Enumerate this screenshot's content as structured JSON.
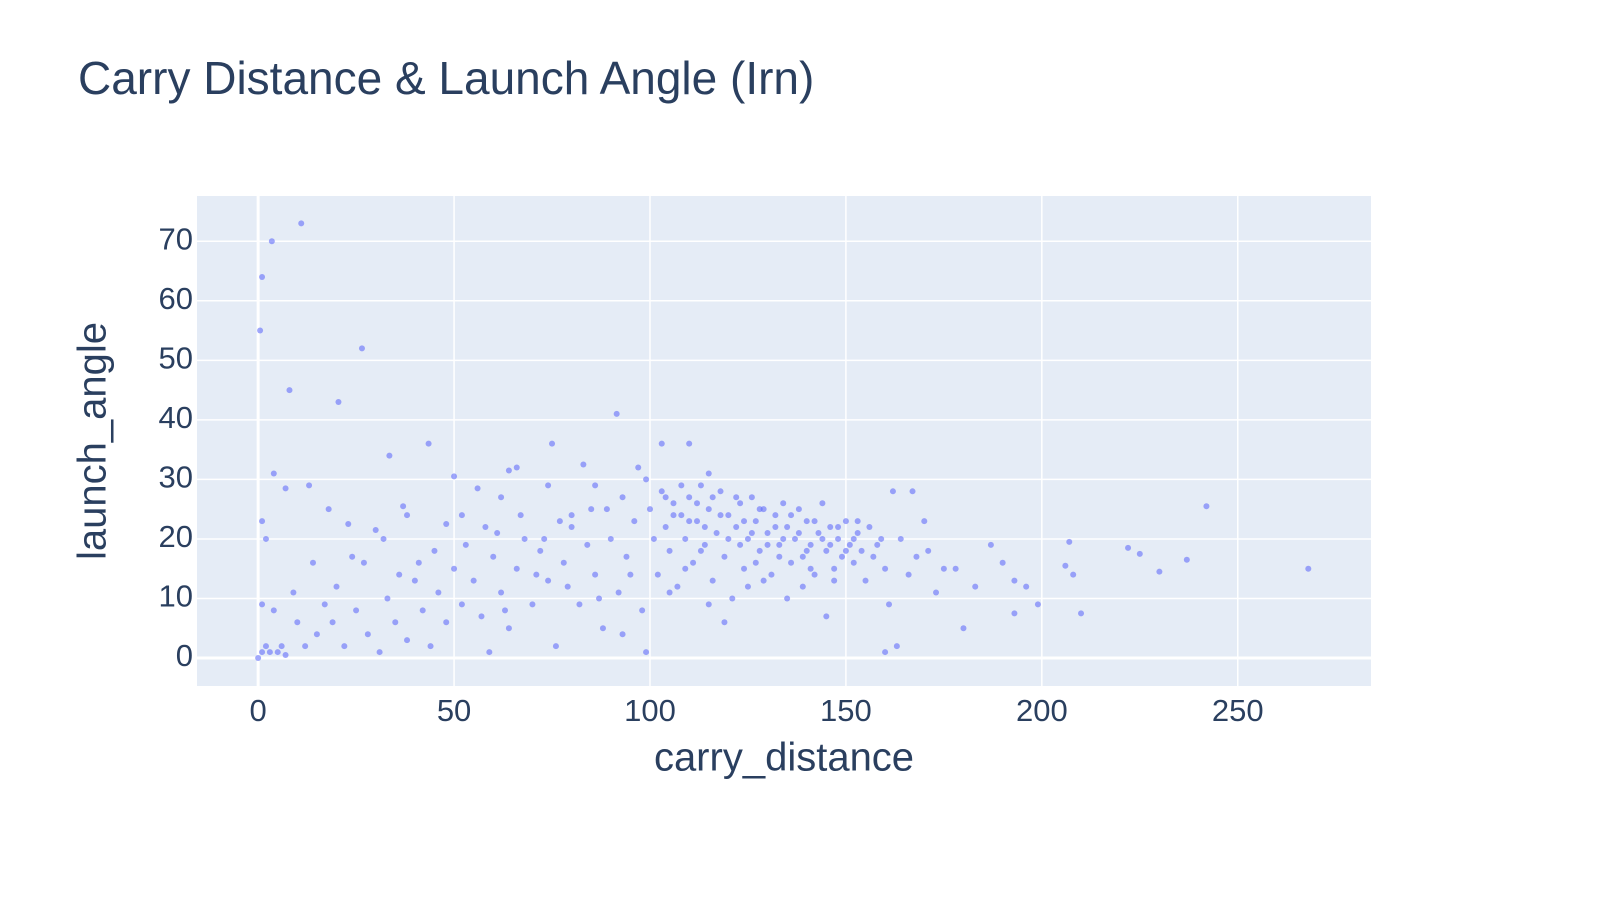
{
  "chart_data": {
    "type": "scatter",
    "title": "Carry Distance & Launch Angle (Irn)",
    "x_label": "carry_distance",
    "y_label": "launch_angle",
    "xlim": [
      -15.6,
      284
    ],
    "ylim": [
      -4.7,
      77.6
    ],
    "xticks": [
      0,
      50,
      100,
      150,
      200,
      250
    ],
    "yticks": [
      0,
      10,
      20,
      30,
      40,
      50,
      60,
      70
    ],
    "grid": true,
    "marker_color": "#636efa",
    "marker_opacity": 0.6,
    "series": [
      {
        "name": "launch_angle",
        "color": "#636efa",
        "x": [
          11,
          3.5,
          1,
          0.5,
          26.5,
          8,
          20.5,
          91.5,
          43.5,
          75,
          103,
          110,
          33.5,
          4,
          50,
          66,
          115,
          1,
          0,
          1,
          2,
          3,
          5,
          7,
          6,
          1,
          4,
          2,
          7,
          13,
          18,
          23,
          30,
          37,
          38,
          48,
          52,
          56,
          62,
          64,
          74,
          80,
          83,
          86,
          89,
          93,
          97,
          99,
          10,
          12,
          15,
          17,
          20,
          22,
          25,
          28,
          31,
          33,
          35,
          38,
          40,
          42,
          44,
          46,
          48,
          50,
          52,
          55,
          57,
          59,
          60,
          62,
          64,
          66,
          68,
          70,
          72,
          74,
          76,
          78,
          80,
          82,
          84,
          86,
          88,
          90,
          92,
          94,
          96,
          98,
          99,
          27,
          14,
          32,
          45,
          53,
          61,
          67,
          73,
          79,
          85,
          95,
          58,
          36,
          24,
          19,
          9,
          41,
          63,
          71,
          77,
          87,
          93,
          100,
          101,
          102,
          103,
          104,
          105,
          106,
          107,
          108,
          109,
          110,
          111,
          112,
          113,
          114,
          115,
          116,
          117,
          118,
          119,
          120,
          121,
          122,
          123,
          124,
          125,
          126,
          127,
          128,
          129,
          130,
          131,
          132,
          133,
          134,
          135,
          136,
          137,
          138,
          139,
          140,
          141,
          142,
          143,
          144,
          145,
          146,
          147,
          148,
          149,
          150,
          151,
          152,
          153,
          154,
          155,
          156,
          157,
          158,
          159,
          160,
          104,
          106,
          108,
          110,
          112,
          114,
          116,
          118,
          120,
          122,
          124,
          126,
          128,
          130,
          132,
          134,
          136,
          138,
          140,
          142,
          144,
          146,
          148,
          150,
          152,
          105,
          115,
          125,
          135,
          145,
          119,
          129,
          139,
          109,
          127,
          141,
          147,
          153,
          113,
          123,
          133,
          160,
          162,
          164,
          166,
          168,
          170,
          173,
          175,
          178,
          180,
          183,
          187,
          190,
          193,
          193,
          196,
          199,
          206,
          207,
          208,
          210,
          222,
          225,
          230,
          237,
          242,
          268,
          161,
          163,
          167,
          171
        ],
        "values": [
          73,
          70,
          64,
          55,
          52,
          45,
          43,
          41,
          36,
          36,
          36,
          36,
          34,
          31,
          30.5,
          32,
          31,
          23,
          0,
          1,
          2,
          1,
          1,
          0.5,
          2,
          9,
          8,
          20,
          28.5,
          29,
          25,
          22.5,
          21.5,
          25.5,
          24,
          22.5,
          24,
          28.5,
          27,
          31.5,
          29,
          24,
          32.5,
          29,
          25,
          27,
          32,
          30,
          6,
          2,
          4,
          9,
          12,
          2,
          8,
          4,
          1,
          10,
          6,
          3,
          13,
          8,
          2,
          11,
          6,
          15,
          9,
          13,
          7,
          1,
          17,
          11,
          5,
          15,
          20,
          9,
          18,
          13,
          2,
          16,
          22,
          9,
          19,
          14,
          5,
          20,
          11,
          17,
          23,
          8,
          1,
          16,
          16,
          20,
          18,
          19,
          21,
          24,
          20,
          12,
          25,
          14,
          22,
          14,
          17,
          6,
          11,
          16,
          8,
          14,
          23,
          10,
          4,
          25,
          20,
          14,
          28,
          22,
          18,
          26,
          12,
          24,
          20,
          27,
          16,
          23,
          29,
          19,
          25,
          13,
          21,
          28,
          17,
          24,
          10,
          22,
          26,
          15,
          20,
          27,
          23,
          18,
          25,
          21,
          14,
          24,
          19,
          26,
          22,
          16,
          20,
          25,
          17,
          23,
          19,
          14,
          21,
          26,
          18,
          22,
          15,
          20,
          17,
          23,
          19,
          16,
          21,
          18,
          13,
          22,
          17,
          19,
          20,
          15,
          27,
          24,
          29,
          23,
          26,
          22,
          27,
          24,
          20,
          27,
          23,
          21,
          25,
          19,
          22,
          20,
          24,
          21,
          18,
          23,
          20,
          19,
          22,
          18,
          20,
          11,
          9,
          12,
          10,
          7,
          6,
          13,
          12,
          15,
          16,
          15,
          13,
          23,
          18,
          19,
          17,
          1,
          28,
          20,
          14,
          17,
          23,
          11,
          15,
          15,
          5,
          12,
          19,
          16,
          13,
          7.5,
          12,
          9,
          15.5,
          19.5,
          14,
          7.5,
          18.5,
          17.5,
          14.5,
          16.5,
          25.5,
          15,
          9,
          2,
          28,
          18
        ]
      }
    ]
  }
}
